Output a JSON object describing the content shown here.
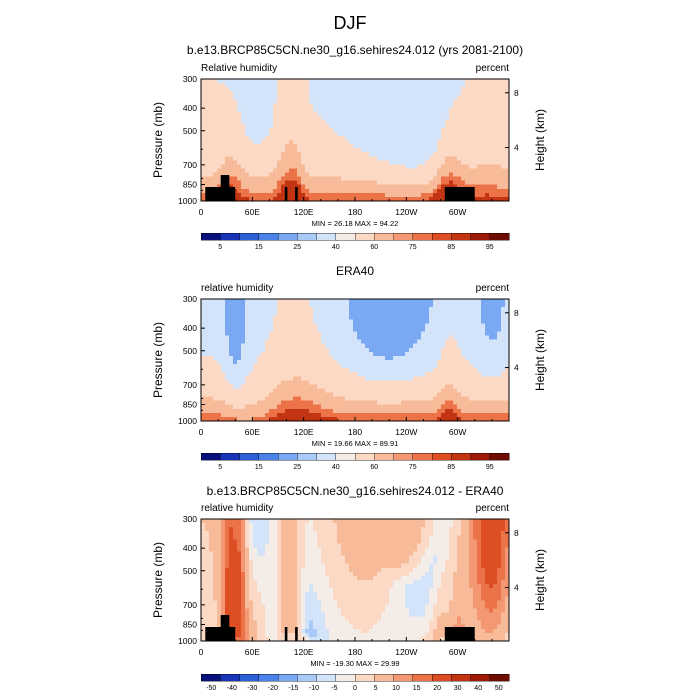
{
  "figure": {
    "title": "DJF"
  },
  "chart_data": [
    {
      "type": "heatmap",
      "title": "b.e13.BRCP85C5CN.ne30_g16.sehires24.012 (yrs 2081-2100)",
      "left_label": "Relative humidity",
      "right_label": "percent",
      "ylabel": "Pressure (mb)",
      "y2label": "Height (km)",
      "xticks": [
        "0",
        "60E",
        "120E",
        "180",
        "120W",
        "60W"
      ],
      "yticks": [
        "300",
        "400",
        "500",
        "700",
        "850",
        "1000"
      ],
      "y2ticks": [
        "8",
        "4"
      ],
      "xlim": [
        0,
        360
      ],
      "ylim": [
        1000,
        300
      ],
      "minmax_text": "MIN = 26.18  MAX = 94.22",
      "min": 26.18,
      "max": 94.22,
      "colorbar": {
        "labels": [
          "5",
          "15",
          "25",
          "40",
          "60",
          "75",
          "85",
          "95"
        ],
        "colors": [
          "#08107a",
          "#1a34b8",
          "#2d5fd6",
          "#4a82e8",
          "#7aa8f2",
          "#a9c9f7",
          "#d2e3fa",
          "#f4ece6",
          "#fbd9c4",
          "#f8bb9a",
          "#f39872",
          "#ec7348",
          "#dd4e25",
          "#c23412",
          "#9e1c07",
          "#6e0c02"
        ]
      },
      "features": {
        "lon": [
          0,
          15,
          30,
          40,
          50,
          60,
          70,
          80,
          90,
          100,
          110,
          120,
          130,
          140,
          150,
          160,
          170,
          180,
          190,
          200,
          210,
          220,
          230,
          240,
          250,
          260,
          270,
          280,
          290,
          300,
          310,
          320,
          330,
          340,
          350,
          360
        ],
        "column_base": 68,
        "column_peak_lon": [
          30,
          95,
          105
        ],
        "mountains_lon": [
          [
            5,
            40
          ],
          [
            98,
            101
          ],
          [
            110,
            113
          ],
          [
            285,
            320
          ]
        ]
      }
    },
    {
      "type": "heatmap",
      "title": "ERA40",
      "left_label": "relative humidity",
      "right_label": "percent",
      "ylabel": "Pressure (mb)",
      "y2label": "Height (km)",
      "xticks": [
        "0",
        "60E",
        "120E",
        "180",
        "120W",
        "60W"
      ],
      "yticks": [
        "300",
        "400",
        "500",
        "700",
        "850",
        "1000"
      ],
      "y2ticks": [
        "8",
        "4"
      ],
      "xlim": [
        0,
        360
      ],
      "ylim": [
        1000,
        300
      ],
      "minmax_text": "MIN = 19.66  MAX = 89.91",
      "min": 19.66,
      "max": 89.91,
      "colorbar": {
        "labels": [
          "5",
          "15",
          "25",
          "40",
          "60",
          "75",
          "85",
          "95"
        ],
        "colors": [
          "#08107a",
          "#1a34b8",
          "#2d5fd6",
          "#4a82e8",
          "#7aa8f2",
          "#a9c9f7",
          "#d2e3fa",
          "#f4ece6",
          "#fbd9c4",
          "#f8bb9a",
          "#f39872",
          "#ec7348",
          "#dd4e25",
          "#c23412",
          "#9e1c07",
          "#6e0c02"
        ]
      },
      "features": {
        "lon": [
          0,
          15,
          30,
          40,
          50,
          60,
          70,
          80,
          90,
          100,
          110,
          120,
          130,
          140,
          150,
          160,
          170,
          180,
          190,
          200,
          210,
          220,
          230,
          240,
          250,
          260,
          270,
          280,
          290,
          300,
          310,
          320,
          330,
          340,
          350,
          360
        ],
        "column_base": 62,
        "column_peak_lon": [
          80,
          110,
          295
        ],
        "mountains_lon": []
      }
    },
    {
      "type": "heatmap",
      "title": "b.e13.BRCP85C5CN.ne30_g16.sehires24.012 - ERA40",
      "left_label": "relative humidity",
      "right_label": "percent",
      "ylabel": "Pressure (mb)",
      "y2label": "Height (km)",
      "xticks": [
        "0",
        "60E",
        "120E",
        "180",
        "120W",
        "60W"
      ],
      "yticks": [
        "300",
        "400",
        "500",
        "700",
        "850",
        "1000"
      ],
      "y2ticks": [
        "8",
        "4"
      ],
      "xlim": [
        0,
        360
      ],
      "ylim": [
        1000,
        300
      ],
      "minmax_text": "MIN = -19.30  MAX = 29.99",
      "min": -19.3,
      "max": 29.99,
      "colorbar": {
        "labels": [
          "-50",
          "-40",
          "-30",
          "-20",
          "-15",
          "-10",
          "-5",
          "0",
          "5",
          "10",
          "15",
          "20",
          "30",
          "40",
          "50"
        ],
        "colors": [
          "#08107a",
          "#1a34b8",
          "#2d5fd6",
          "#4a82e8",
          "#7aa8f2",
          "#a9c9f7",
          "#d2e3fa",
          "#f4ece6",
          "#fbd9c4",
          "#f8bb9a",
          "#f39872",
          "#ec7348",
          "#dd4e25",
          "#c23412",
          "#9e1c07",
          "#6e0c02"
        ]
      },
      "features": {
        "lon": [
          0,
          15,
          30,
          40,
          50,
          60,
          70,
          80,
          90,
          100,
          110,
          120,
          130,
          140,
          150,
          160,
          170,
          180,
          190,
          200,
          210,
          220,
          230,
          240,
          250,
          260,
          270,
          280,
          290,
          300,
          310,
          320,
          330,
          340,
          350,
          360
        ],
        "column_base": 0,
        "column_peak_lon": [
          35,
          280
        ],
        "mountains_lon": [
          [
            5,
            40
          ],
          [
            98,
            101
          ],
          [
            110,
            113
          ],
          [
            285,
            320
          ]
        ]
      }
    }
  ]
}
